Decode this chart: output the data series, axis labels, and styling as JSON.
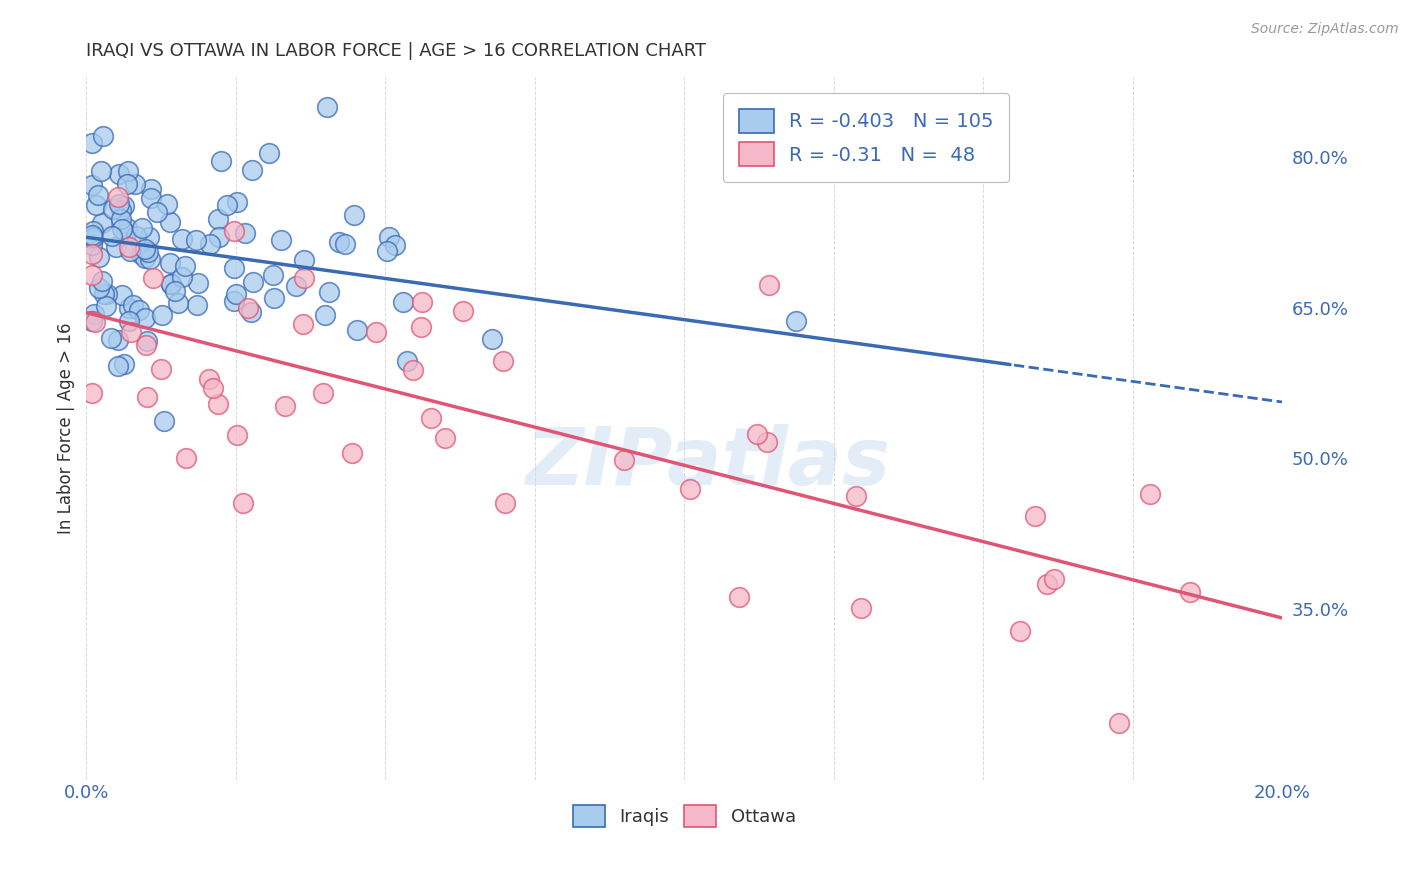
{
  "title": "IRAQI VS OTTAWA IN LABOR FORCE | AGE > 16 CORRELATION CHART",
  "source": "Source: ZipAtlas.com",
  "ylabel": "In Labor Force | Age > 16",
  "xlim": [
    0.0,
    0.2
  ],
  "ylim": [
    0.18,
    0.88
  ],
  "right_yticks": [
    0.35,
    0.5,
    0.65,
    0.8
  ],
  "right_ytick_labels": [
    "35.0%",
    "50.0%",
    "65.0%",
    "80.0%"
  ],
  "color_blue": "#A8CCEE",
  "color_pink": "#F4B8C8",
  "line_blue": "#3B6AB5",
  "line_pink": "#E05575",
  "R_blue": -0.403,
  "N_blue": 105,
  "R_pink": -0.31,
  "N_pink": 48,
  "blue_intercept": 0.72,
  "blue_slope": -0.82,
  "pink_intercept": 0.645,
  "pink_slope": -1.52,
  "watermark": "ZIPatlas",
  "background_color": "#FFFFFF",
  "grid_color": "#D8D8D8",
  "title_color": "#333333",
  "axis_color": "#3B6AB5",
  "text_color": "#333333",
  "legend_R_color": "#E05575",
  "seed_blue": 77,
  "seed_pink": 99
}
